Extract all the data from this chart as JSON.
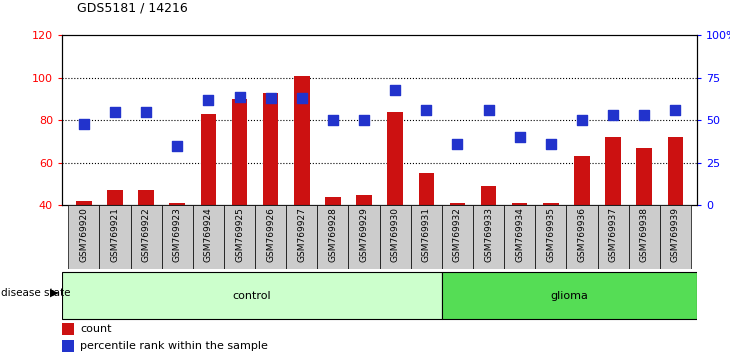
{
  "title": "GDS5181 / 14216",
  "samples": [
    "GSM769920",
    "GSM769921",
    "GSM769922",
    "GSM769923",
    "GSM769924",
    "GSM769925",
    "GSM769926",
    "GSM769927",
    "GSM769928",
    "GSM769929",
    "GSM769930",
    "GSM769931",
    "GSM769932",
    "GSM769933",
    "GSM769934",
    "GSM769935",
    "GSM769936",
    "GSM769937",
    "GSM769938",
    "GSM769939"
  ],
  "count_values": [
    42,
    47,
    47,
    41,
    83,
    90,
    93,
    101,
    44,
    45,
    84,
    55,
    41,
    49,
    41,
    41,
    63,
    72,
    67,
    72
  ],
  "percentile_values": [
    48,
    55,
    55,
    35,
    62,
    64,
    63,
    63,
    50,
    50,
    68,
    56,
    36,
    56,
    40,
    36,
    50,
    53,
    53,
    56
  ],
  "n_control": 12,
  "n_glioma": 8,
  "ylim_left": [
    40,
    120
  ],
  "ylim_right": [
    0,
    100
  ],
  "yticks_left": [
    40,
    60,
    80,
    100,
    120
  ],
  "yticks_right": [
    0,
    25,
    50,
    75,
    100
  ],
  "ytick_labels_right": [
    "0",
    "25",
    "50",
    "75",
    "100%"
  ],
  "bar_color": "#cc1111",
  "dot_color": "#2233cc",
  "control_color": "#ccffcc",
  "glioma_color": "#55dd55",
  "bar_width": 0.5,
  "dot_size": 45,
  "label_bg_color": "#cccccc"
}
